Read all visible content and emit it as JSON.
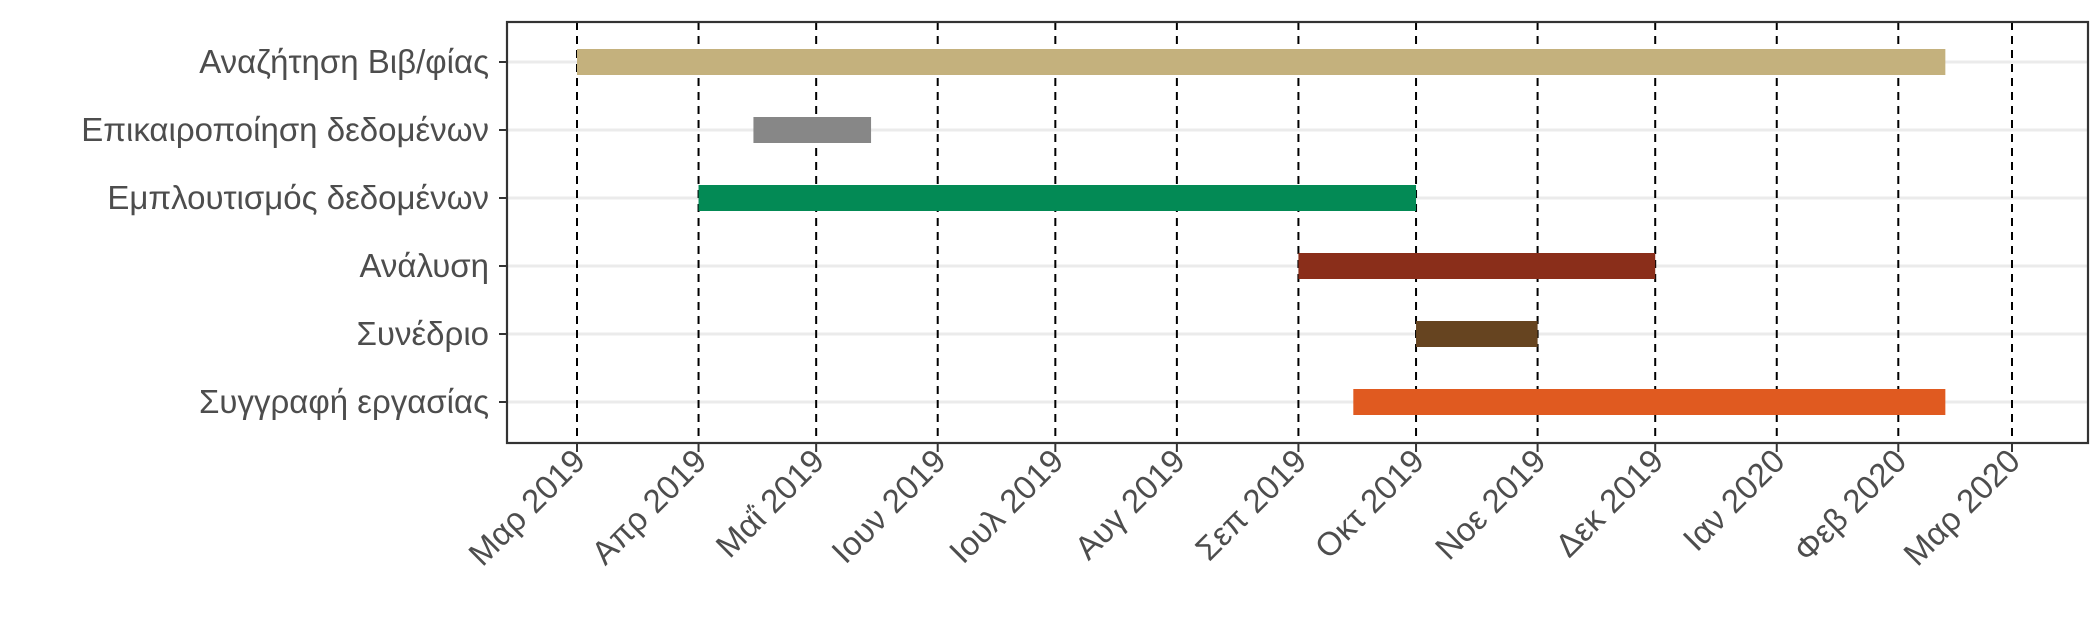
{
  "chart_data": {
    "type": "gantt",
    "title": "",
    "xlabel": "",
    "ylabel": "",
    "x_axis": {
      "scale": "time",
      "range": [
        "2019-02-16",
        "2020-03-20"
      ],
      "ticks": [
        {
          "date": "2019-03-01",
          "label": "Μαρ 2019"
        },
        {
          "date": "2019-04-01",
          "label": "Απρ 2019"
        },
        {
          "date": "2019-05-01",
          "label": "Μαΐ 2019"
        },
        {
          "date": "2019-06-01",
          "label": "Ιουν 2019"
        },
        {
          "date": "2019-07-01",
          "label": "Ιουλ 2019"
        },
        {
          "date": "2019-08-01",
          "label": "Αυγ 2019"
        },
        {
          "date": "2019-09-01",
          "label": "Σεπ 2019"
        },
        {
          "date": "2019-10-01",
          "label": "Οκτ 2019"
        },
        {
          "date": "2019-11-01",
          "label": "Νοε 2019"
        },
        {
          "date": "2019-12-01",
          "label": "Δεκ 2019"
        },
        {
          "date": "2020-01-01",
          "label": "Ιαν 2020"
        },
        {
          "date": "2020-02-01",
          "label": "Φεβ 2020"
        },
        {
          "date": "2020-03-01",
          "label": "Μαρ 2020"
        }
      ],
      "vertical_lines": "dashed at each month start",
      "tick_label_rotation": "45 degrees"
    },
    "grid": {
      "horizontal": true,
      "vertical": false
    },
    "legend": "none",
    "tasks": [
      {
        "name": "Αναζήτηση Βιβ/φίας",
        "start": "2019-03-01",
        "end": "2020-02-13",
        "color": "#c4b17d"
      },
      {
        "name": "Επικαιροποίηση δεδομένων",
        "start": "2019-04-15",
        "end": "2019-05-15",
        "color": "#878787"
      },
      {
        "name": "Εμπλουτισμός δεδομένων",
        "start": "2019-04-01",
        "end": "2019-10-01",
        "color": "#038a55"
      },
      {
        "name": "Ανάλυση",
        "start": "2019-09-01",
        "end": "2019-12-01",
        "color": "#8a2e1a"
      },
      {
        "name": "Συνέδριο",
        "start": "2019-10-01",
        "end": "2019-11-01",
        "color": "#664420"
      },
      {
        "name": "Συγγραφή εργασίας",
        "start": "2019-09-15",
        "end": "2020-02-13",
        "color": "#e05a20"
      }
    ]
  }
}
